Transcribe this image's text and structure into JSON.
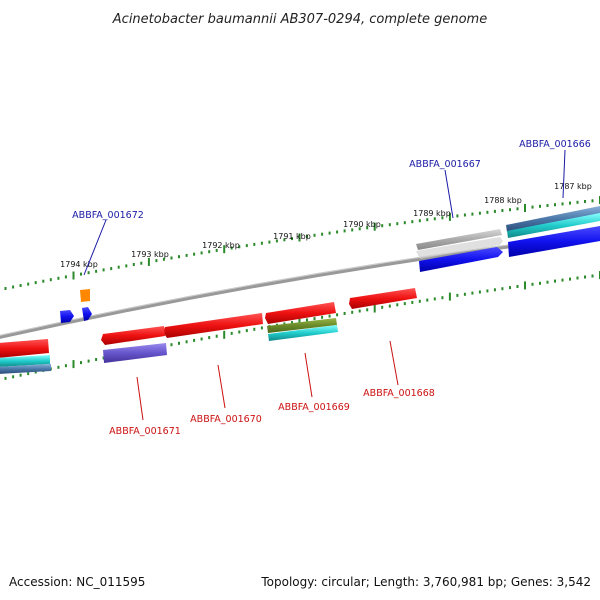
{
  "header": {
    "title": "Acinetobacter baumannii AB307-0294, complete genome"
  },
  "footer": {
    "accession": "Accession: NC_011595",
    "summary": "Topology: circular; Length: 3,760,981 bp; Genes: 3,542"
  },
  "ticks": [
    "1787 kbp",
    "1788 kbp",
    "1789 kbp",
    "1790 kbp",
    "1791 kbp",
    "1792 kbp",
    "1793 kbp",
    "1794 kbp"
  ],
  "genes": {
    "g1666": "ABBFA_001666",
    "g1667": "ABBFA_001667",
    "g1668": "ABBFA_001668",
    "g1669": "ABBFA_001669",
    "g1670": "ABBFA_001670",
    "g1671": "ABBFA_001671",
    "g1672": "ABBFA_001672"
  },
  "colors": {
    "backbone": "#888888",
    "tick": "#2a8a2a",
    "gene_red": "#ee1111",
    "gene_blue": "#1111ee",
    "gene_gray": "#aaaaaa",
    "gene_cyan": "#22cccc",
    "gene_steel": "#4a78a8",
    "gene_purple": "#6655cc",
    "gene_olive": "#6a8a2a",
    "gene_orange": "#ff8800",
    "label_blue": "#1a1aa6",
    "label_red": "#cc1111"
  }
}
